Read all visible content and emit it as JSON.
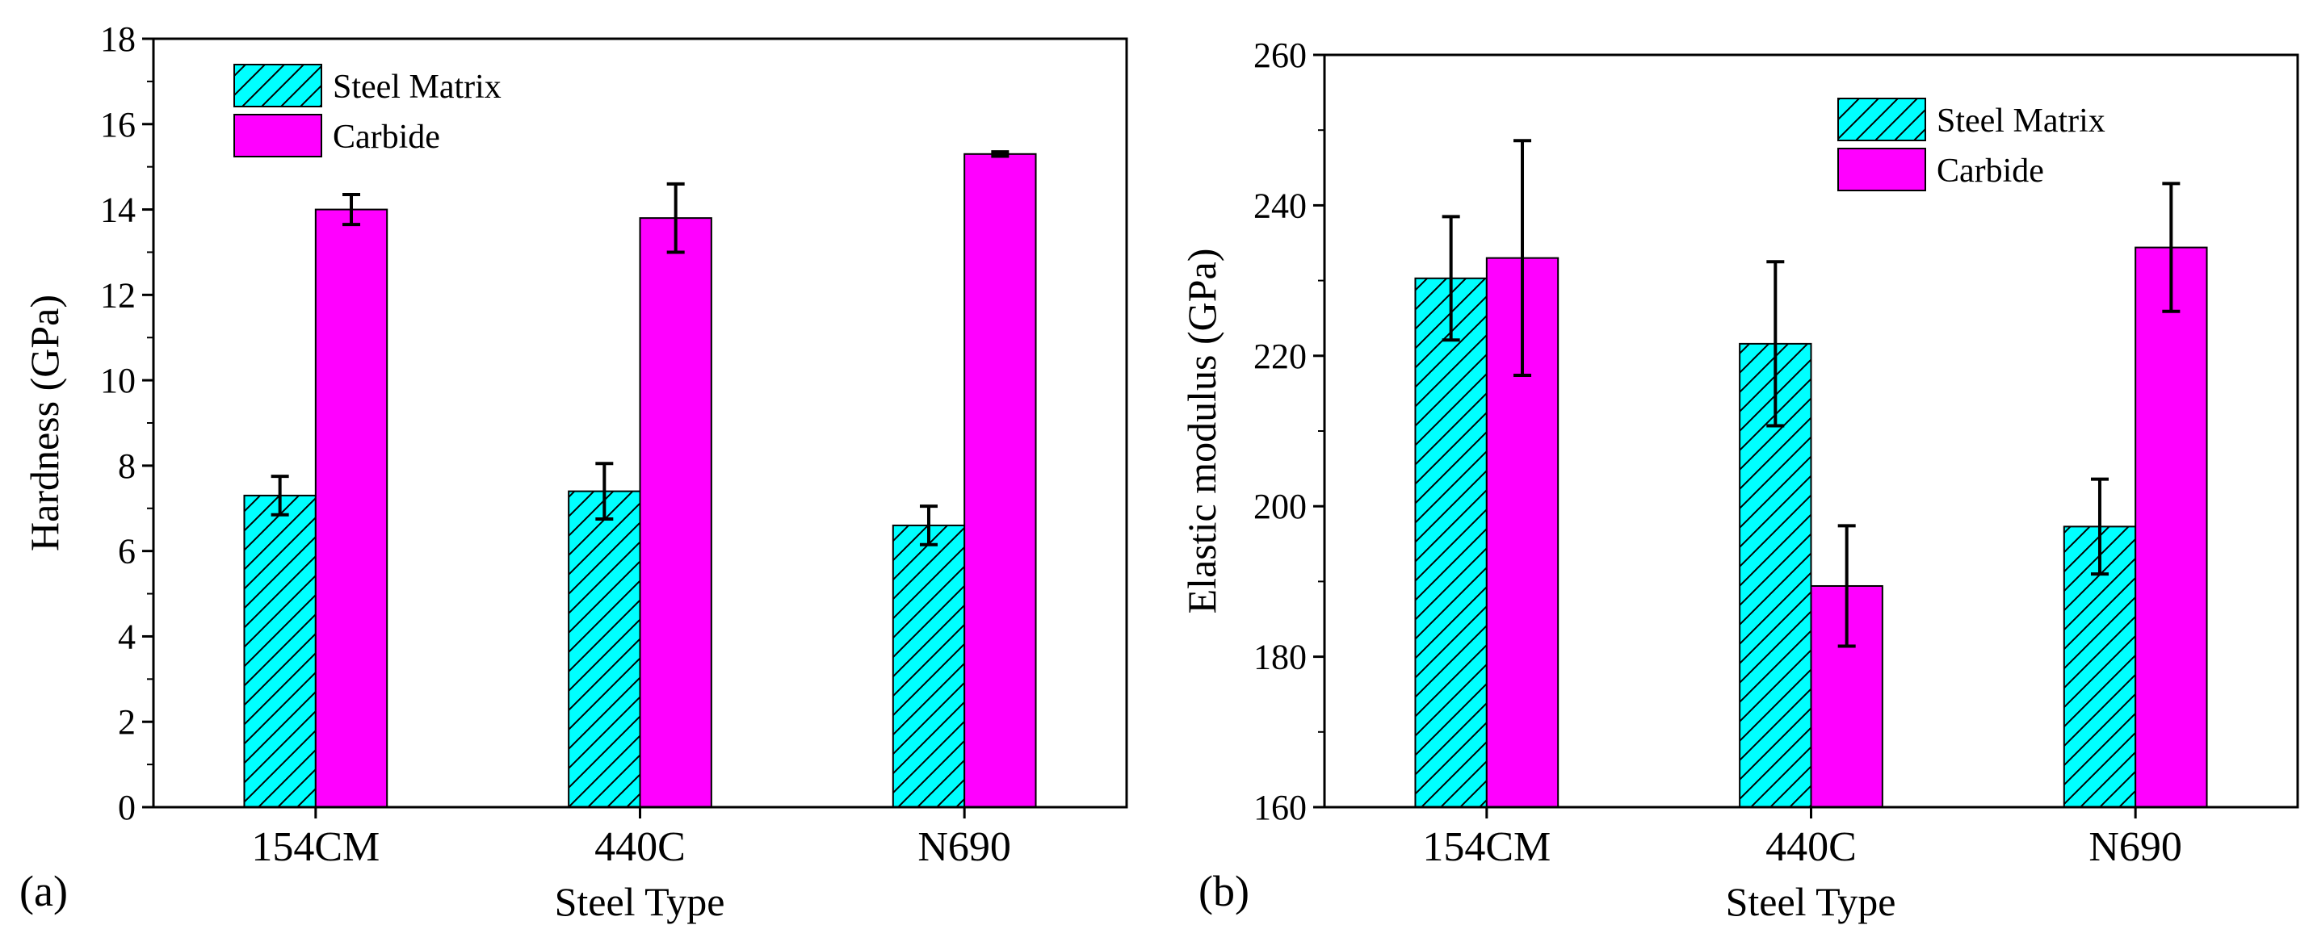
{
  "colors": {
    "steel_matrix": "#00ffff",
    "carbide": "#ff00ff",
    "axis": "#000000"
  },
  "chart_data": [
    {
      "type": "bar",
      "panel_label": "(a)",
      "title": "",
      "xlabel": "Steel Type",
      "ylabel": "Hardness (GPa)",
      "categories": [
        "154CM",
        "440C",
        "N690"
      ],
      "ylim": [
        0,
        18
      ],
      "yticks": [
        0,
        2,
        4,
        6,
        8,
        10,
        12,
        14,
        16,
        18
      ],
      "legend_position": "top-left",
      "series": [
        {
          "name": "Steel Matrix",
          "color": "#00ffff",
          "pattern": "hatch",
          "values": [
            7.3,
            7.4,
            6.6
          ],
          "errors": [
            0.45,
            0.65,
            0.45
          ]
        },
        {
          "name": "Carbide",
          "color": "#ff00ff",
          "pattern": "solid",
          "values": [
            14.0,
            13.8,
            15.3
          ],
          "errors": [
            0.35,
            0.8,
            0.05
          ]
        }
      ]
    },
    {
      "type": "bar",
      "panel_label": "(b)",
      "title": "",
      "xlabel": "Steel Type",
      "ylabel": "Elastic modulus (GPa)",
      "categories": [
        "154CM",
        "440C",
        "N690"
      ],
      "ylim": [
        160,
        260
      ],
      "yticks": [
        160,
        180,
        200,
        220,
        240,
        260
      ],
      "legend_position": "top-right",
      "series": [
        {
          "name": "Steel Matrix",
          "color": "#00ffff",
          "pattern": "hatch",
          "values": [
            230.3,
            221.6,
            197.3
          ],
          "errors": [
            8.2,
            10.9,
            6.3
          ]
        },
        {
          "name": "Carbide",
          "color": "#ff00ff",
          "pattern": "solid",
          "values": [
            233.0,
            189.4,
            234.4
          ],
          "errors": [
            15.6,
            8.0,
            8.5
          ]
        }
      ]
    }
  ]
}
